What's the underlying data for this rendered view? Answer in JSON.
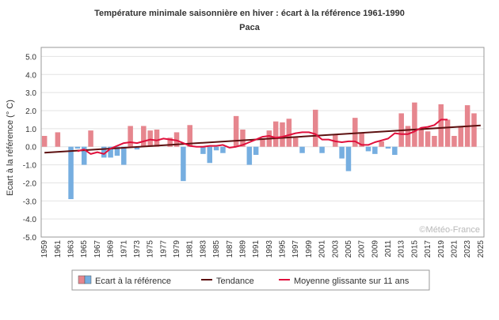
{
  "chart_data": {
    "type": "bar",
    "title": "Température minimale saisonnière en hiver : écart à la référence 1961-1990",
    "subtitle": "Paca",
    "ylabel": "Ecart à la référence (° C)",
    "xlabel": "",
    "ylim": [
      -5.0,
      5.5
    ],
    "yticks": [
      "-5.0",
      "-4.0",
      "-3.0",
      "-2.0",
      "-1.0",
      "0.0",
      "1.0",
      "2.0",
      "3.0",
      "4.0",
      "5.0"
    ],
    "x_start": 1959,
    "x_end": 2025,
    "xtick_labels": [
      "1959",
      "1961",
      "1963",
      "1965",
      "1967",
      "1969",
      "1971",
      "1973",
      "1975",
      "1977",
      "1979",
      "1981",
      "1983",
      "1985",
      "1987",
      "1989",
      "1991",
      "1993",
      "1995",
      "1997",
      "1999",
      "2001",
      "2003",
      "2005",
      "2007",
      "2009",
      "2011",
      "2013",
      "2015",
      "2017",
      "2019",
      "2021",
      "2023",
      "2025"
    ],
    "grid": "horizontal",
    "watermark": "©Météo-France",
    "colors": {
      "positive": "#e6868e",
      "negative": "#76aee0",
      "trend": "#5c1010",
      "moving_avg": "#e0103c"
    },
    "series": [
      {
        "name": "Ecart à la référence",
        "x": [
          1959,
          1960,
          1961,
          1962,
          1963,
          1964,
          1965,
          1966,
          1967,
          1968,
          1969,
          1970,
          1971,
          1972,
          1973,
          1974,
          1975,
          1976,
          1977,
          1978,
          1979,
          1980,
          1981,
          1982,
          1983,
          1984,
          1985,
          1986,
          1987,
          1988,
          1989,
          1990,
          1991,
          1992,
          1993,
          1994,
          1995,
          1996,
          1997,
          1998,
          1999,
          2000,
          2001,
          2002,
          2003,
          2004,
          2005,
          2006,
          2007,
          2008,
          2009,
          2010,
          2011,
          2012,
          2013,
          2014,
          2015,
          2016,
          2017,
          2018,
          2019,
          2020,
          2021,
          2022,
          2023,
          2024,
          2025
        ],
        "values": [
          0.6,
          0.0,
          0.8,
          0.0,
          -2.9,
          -0.1,
          -1.0,
          0.9,
          0.0,
          -0.6,
          -0.6,
          -0.5,
          -1.0,
          1.15,
          -0.15,
          1.15,
          0.9,
          0.95,
          0.0,
          0.5,
          0.8,
          -1.9,
          1.2,
          0.0,
          -0.4,
          -0.9,
          -0.2,
          -0.35,
          0.0,
          1.7,
          0.95,
          -1.0,
          -0.45,
          0.45,
          0.9,
          1.4,
          1.35,
          1.55,
          0.5,
          -0.35,
          0.0,
          2.05,
          -0.35,
          0.0,
          0.7,
          -0.65,
          -1.35,
          1.6,
          0.75,
          -0.25,
          -0.4,
          0.3,
          -0.1,
          -0.45,
          1.85,
          1.15,
          2.45,
          1.0,
          0.85,
          0.6,
          2.35,
          1.5,
          0.6,
          1.15,
          2.3,
          1.85,
          0.0
        ]
      },
      {
        "name": "Tendance",
        "type": "line",
        "x": [
          1959,
          2025
        ],
        "values": [
          -0.33,
          1.18
        ]
      },
      {
        "name": "Moyenne glissante sur 11 ans",
        "type": "line",
        "x": [
          1964,
          1965,
          1966,
          1967,
          1968,
          1969,
          1970,
          1971,
          1972,
          1973,
          1974,
          1975,
          1976,
          1977,
          1978,
          1979,
          1980,
          1981,
          1982,
          1983,
          1984,
          1985,
          1986,
          1987,
          1988,
          1989,
          1990,
          1991,
          1992,
          1993,
          1994,
          1995,
          1996,
          1997,
          1998,
          1999,
          2000,
          2001,
          2002,
          2003,
          2004,
          2005,
          2006,
          2007,
          2008,
          2009,
          2010,
          2011,
          2012,
          2013,
          2014,
          2015,
          2016,
          2017,
          2018,
          2019,
          2020
        ],
        "values": [
          -0.25,
          -0.15,
          -0.4,
          -0.3,
          -0.4,
          -0.1,
          0.05,
          0.2,
          0.25,
          0.2,
          0.3,
          0.4,
          0.35,
          0.45,
          0.4,
          0.35,
          0.2,
          0.05,
          0.0,
          0.0,
          0.05,
          0.05,
          0.1,
          -0.05,
          0.0,
          0.1,
          0.25,
          0.4,
          0.55,
          0.6,
          0.5,
          0.55,
          0.65,
          0.75,
          0.8,
          0.8,
          0.7,
          0.4,
          0.4,
          0.3,
          0.25,
          0.3,
          0.3,
          0.1,
          0.1,
          0.25,
          0.35,
          0.45,
          0.75,
          0.7,
          0.7,
          0.85,
          1.05,
          1.1,
          1.2,
          1.5,
          1.5
        ]
      }
    ],
    "legend": {
      "position": "bottom",
      "items": [
        "Ecart à la référence",
        "Tendance",
        "Moyenne glissante sur 11 ans"
      ]
    }
  }
}
